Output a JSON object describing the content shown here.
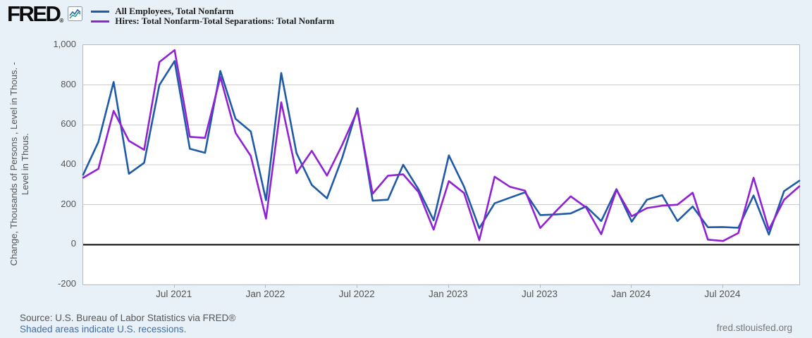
{
  "header": {
    "logo_text": "FRED",
    "logo_registered": "®",
    "legend": [
      {
        "label": "All Employees, Total Nonfarm",
        "color": "#1e5aa8"
      },
      {
        "label": "Hires: Total Nonfarm-Total Separations: Total Nonfarm",
        "color": "#9021d4"
      }
    ]
  },
  "footer": {
    "source_text": "Source: U.S. Bureau of Labor Statistics via FRED®",
    "recession_note": "Shaded areas indicate U.S. recessions.",
    "site_link": "fred.stlouisfed.org"
  },
  "chart_data": {
    "type": "line",
    "title": "",
    "ylabel_line1": "Change, Thousands of Persons , Level in Thous. -",
    "ylabel_line2": "Level in Thous.",
    "ylim": [
      -200,
      1000
    ],
    "grid": true,
    "zero_line": true,
    "background": "#ffffff",
    "gridline_color": "#cccccc",
    "zero_line_color": "#000000",
    "y_ticks": [
      {
        "value": 1000,
        "label": "1,000"
      },
      {
        "value": 800,
        "label": "800"
      },
      {
        "value": 600,
        "label": "600"
      },
      {
        "value": 400,
        "label": "400"
      },
      {
        "value": 200,
        "label": "200"
      },
      {
        "value": 0,
        "label": "0"
      },
      {
        "value": -200,
        "label": "-200"
      }
    ],
    "x": [
      "Jan 2021",
      "Feb 2021",
      "Mar 2021",
      "Apr 2021",
      "May 2021",
      "Jun 2021",
      "Jul 2021",
      "Aug 2021",
      "Sep 2021",
      "Oct 2021",
      "Nov 2021",
      "Dec 2021",
      "Jan 2022",
      "Feb 2022",
      "Mar 2022",
      "Apr 2022",
      "May 2022",
      "Jun 2022",
      "Jul 2022",
      "Aug 2022",
      "Sep 2022",
      "Oct 2022",
      "Nov 2022",
      "Dec 2022",
      "Jan 2023",
      "Feb 2023",
      "Mar 2023",
      "Apr 2023",
      "May 2023",
      "Jun 2023",
      "Jul 2023",
      "Aug 2023",
      "Sep 2023",
      "Oct 2023",
      "Nov 2023",
      "Dec 2023",
      "Jan 2024",
      "Feb 2024",
      "Mar 2024",
      "Apr 2024",
      "May 2024",
      "Jun 2024",
      "Jul 2024",
      "Aug 2024",
      "Sep 2024",
      "Oct 2024",
      "Nov 2024",
      "Dec 2024"
    ],
    "x_ticks": [
      {
        "index": 6,
        "label": "Jul 2021"
      },
      {
        "index": 12,
        "label": "Jan 2022"
      },
      {
        "index": 18,
        "label": "Jul 2022"
      },
      {
        "index": 24,
        "label": "Jan 2023"
      },
      {
        "index": 30,
        "label": "Jul 2023"
      },
      {
        "index": 36,
        "label": "Jan 2024"
      },
      {
        "index": 42,
        "label": "Jul 2024"
      }
    ],
    "series": [
      {
        "name": "All Employees, Total Nonfarm",
        "color": "#1e5aa8",
        "values": [
          350,
          515,
          815,
          355,
          410,
          800,
          920,
          480,
          460,
          870,
          630,
          567,
          222,
          860,
          459,
          299,
          232,
          435,
          683,
          220,
          225,
          400,
          278,
          122,
          447,
          290,
          82,
          207,
          235,
          262,
          148,
          151,
          156,
          191,
          118,
          278,
          115,
          225,
          248,
          118,
          191,
          87,
          88,
          84,
          246,
          50,
          268,
          320
        ]
      },
      {
        "name": "Hires: Total Nonfarm-Total Separations: Total Nonfarm",
        "color": "#9021d4",
        "values": [
          335,
          380,
          670,
          520,
          475,
          915,
          975,
          540,
          535,
          840,
          560,
          444,
          130,
          713,
          358,
          470,
          346,
          500,
          672,
          255,
          345,
          352,
          264,
          75,
          318,
          258,
          22,
          340,
          290,
          270,
          83,
          165,
          242,
          186,
          52,
          274,
          142,
          183,
          195,
          200,
          260,
          25,
          18,
          58,
          335,
          75,
          225,
          292
        ]
      }
    ]
  }
}
